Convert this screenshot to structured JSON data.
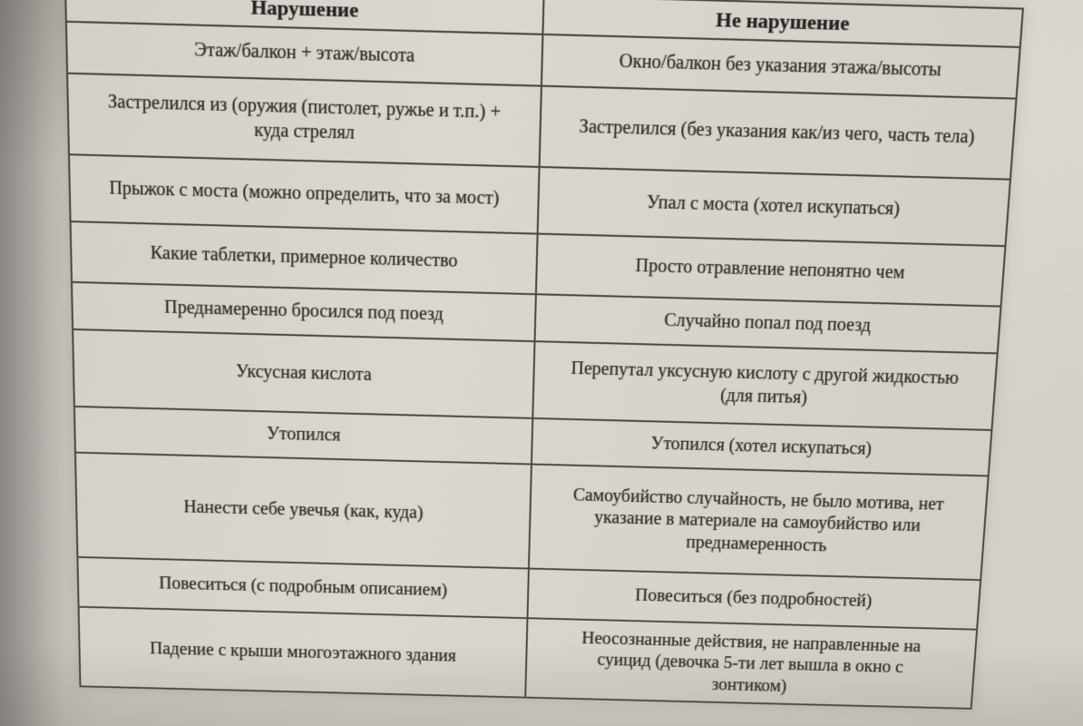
{
  "colors": {
    "paper": "#d6d3cd",
    "ink": "#2e2c28",
    "table_border": "#49463f"
  },
  "table": {
    "col1_header": "Нарушение",
    "col2_header": "Не нарушение",
    "rows": [
      {
        "violation": "Этаж/балкон + этаж/высота",
        "not_violation": "Окно/балкон без указания этажа/высоты"
      },
      {
        "violation": "Застрелился из (оружия (пистолет, ружье и т.п.) + куда стрелял",
        "not_violation": "Застрелился (без указания как/из чего, часть тела)"
      },
      {
        "violation": "Прыжок с моста (можно определить, что за мост)",
        "not_violation": "Упал с моста (хотел искупаться)"
      },
      {
        "violation": "Какие таблетки, примерное количество",
        "not_violation": "Просто отравление непонятно чем"
      },
      {
        "violation": "Преднамеренно бросился под поезд",
        "not_violation": "Случайно попал под поезд"
      },
      {
        "violation": "Уксусная кислота",
        "not_violation": "Перепутал уксусную кислоту с другой жидкостью (для питья)"
      },
      {
        "violation": "Утопился",
        "not_violation": "Утопился (хотел искупаться)"
      },
      {
        "violation": "Нанести себе увечья (как, куда)",
        "not_violation": "Самоубийство случайность, не было мотива, нет указание в материале на самоубийство или преднамеренность"
      },
      {
        "violation": "Повеситься (с подробным описанием)",
        "not_violation": "Повеситься (без подробностей)"
      },
      {
        "violation": "Падение с крыши многоэтажного здания",
        "not_violation": "Неосознанные действия, не направленные на суицид (девочка 5-ти лет вышла в окно с зонтиком)"
      }
    ]
  }
}
